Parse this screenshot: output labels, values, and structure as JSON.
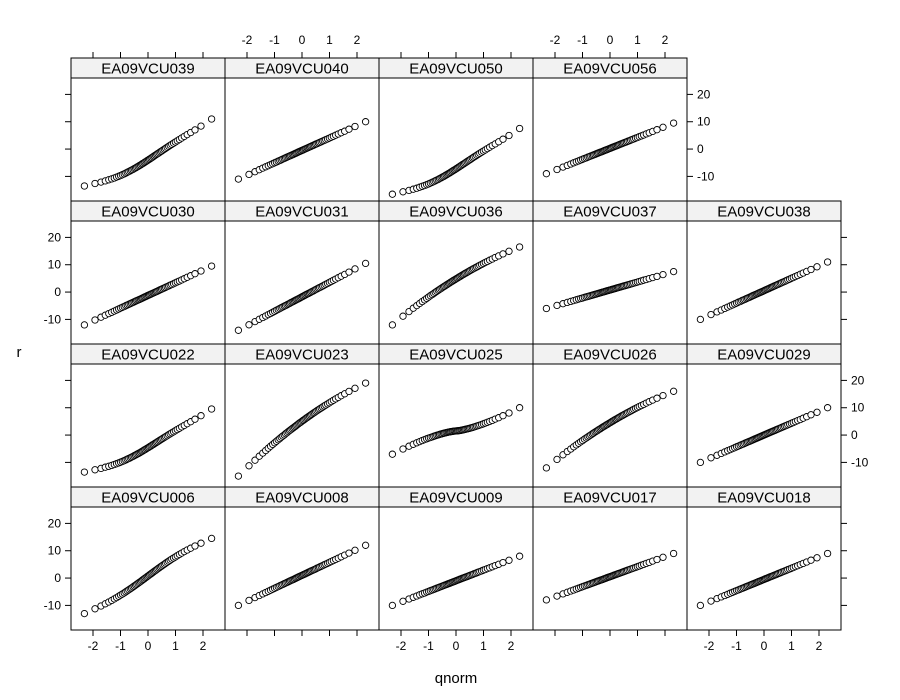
{
  "chart_data": {
    "type": "scatter",
    "subtype": "normal-qq-lattice",
    "xlabel": "qnorm",
    "ylabel": "r",
    "xlim": [
      -2.8,
      2.8
    ],
    "ylim": [
      -19,
      26
    ],
    "x_ticks": [
      "-2",
      "-1",
      "0",
      "1",
      "2"
    ],
    "y_ticks": [
      "-10",
      "0",
      "10",
      "20"
    ],
    "strip_color": "#f2f2f2",
    "layout": {
      "columns": 5,
      "rows": 4,
      "order": "bottom-to-top"
    },
    "panels": [
      {
        "name": "EA09VCU006",
        "min": -13,
        "max": 14.5,
        "curve": "s"
      },
      {
        "name": "EA09VCU008",
        "min": -10,
        "max": 12,
        "curve": "linear"
      },
      {
        "name": "EA09VCU009",
        "min": -10,
        "max": 8,
        "curve": "linear"
      },
      {
        "name": "EA09VCU017",
        "min": -8,
        "max": 9,
        "curve": "linear"
      },
      {
        "name": "EA09VCU018",
        "min": -10,
        "max": 9,
        "curve": "linear"
      },
      {
        "name": "EA09VCU022",
        "min": -14,
        "max": 10,
        "curve": "skew-left"
      },
      {
        "name": "EA09VCU023",
        "min": -15,
        "max": 19,
        "curve": "skew-right"
      },
      {
        "name": "EA09VCU025",
        "min": -7,
        "max": 10,
        "curve": "flat"
      },
      {
        "name": "EA09VCU026",
        "min": -12,
        "max": 16,
        "curve": "skew-right"
      },
      {
        "name": "EA09VCU029",
        "min": -10,
        "max": 10,
        "curve": "linear"
      },
      {
        "name": "EA09VCU030",
        "min": -12,
        "max": 9.5,
        "curve": "linear"
      },
      {
        "name": "EA09VCU031",
        "min": -14,
        "max": 10.5,
        "curve": "linear"
      },
      {
        "name": "EA09VCU036",
        "min": -12,
        "max": 16.5,
        "curve": "skew-right"
      },
      {
        "name": "EA09VCU037",
        "min": -6,
        "max": 7.5,
        "curve": "linear"
      },
      {
        "name": "EA09VCU038",
        "min": -10,
        "max": 11,
        "curve": "linear"
      },
      {
        "name": "EA09VCU039",
        "min": -14,
        "max": 11.5,
        "curve": "skew-left"
      },
      {
        "name": "EA09VCU040",
        "min": -11,
        "max": 10,
        "curve": "linear"
      },
      {
        "name": "EA09VCU050",
        "min": -17,
        "max": 8,
        "curve": "skew-left"
      },
      {
        "name": "EA09VCU056",
        "min": -9,
        "max": 9.5,
        "curve": "linear"
      }
    ]
  }
}
